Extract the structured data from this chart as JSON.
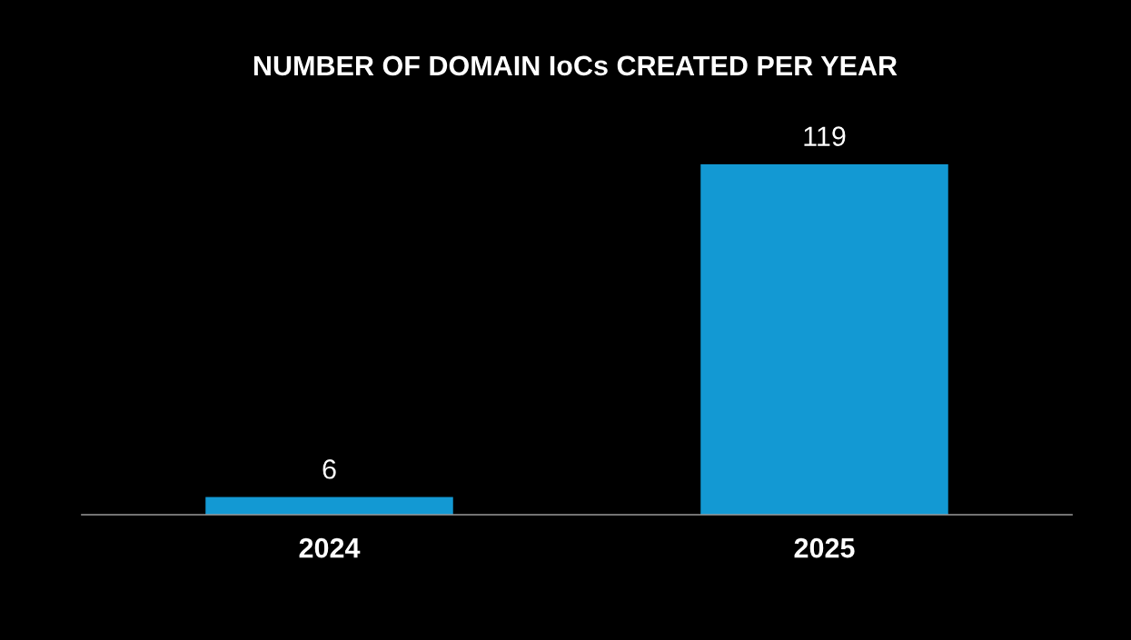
{
  "chart_data": {
    "type": "bar",
    "title": "NUMBER OF DOMAIN IoCs CREATED PER YEAR",
    "categories": [
      "2024",
      "2025"
    ],
    "values": [
      6,
      119
    ],
    "color": "#1399d3",
    "data_labels": true
  }
}
